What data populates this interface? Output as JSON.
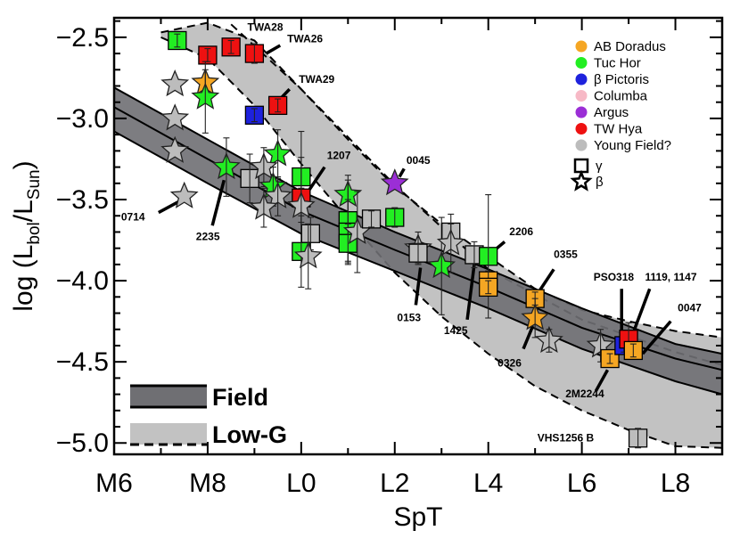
{
  "chart_data": {
    "type": "scatter",
    "xlabel": "SpT",
    "ylabel_main": "log (L",
    "ylabel_sub1": "bol",
    "ylabel_mid": "/L",
    "ylabel_sub2": "Sun",
    "ylabel_end": ")",
    "xlim": [
      6,
      19
    ],
    "ylim": [
      -5.07,
      -2.38
    ],
    "x_ticks": [
      {
        "value": 6,
        "label": "M6"
      },
      {
        "value": 8,
        "label": "M8"
      },
      {
        "value": 10,
        "label": "L0"
      },
      {
        "value": 12,
        "label": "L2"
      },
      {
        "value": 14,
        "label": "L4"
      },
      {
        "value": 16,
        "label": "L6"
      },
      {
        "value": 18,
        "label": "L8"
      }
    ],
    "y_ticks": [
      {
        "value": -2.5,
        "label": "−2.5"
      },
      {
        "value": -3.0,
        "label": "−3.0"
      },
      {
        "value": -3.5,
        "label": "−3.5"
      },
      {
        "value": -4.0,
        "label": "−4.0"
      },
      {
        "value": -4.5,
        "label": "−4.5"
      },
      {
        "value": -5.0,
        "label": "−5.0"
      }
    ],
    "colors": {
      "ABDor": "#f5a623",
      "TucHor": "#22ee22",
      "bPic": "#1e22dd",
      "Columba": "#f7b9c6",
      "Argus": "#9b2ed6",
      "TWHya": "#ee1111",
      "Field": "#bcbcbc",
      "field_band": "#6f6f73",
      "lowg_band": "#c2c2c2"
    },
    "legend": [
      {
        "label": "AB Doradus",
        "color": "#f5a623"
      },
      {
        "label": "Tuc Hor",
        "color": "#22ee22"
      },
      {
        "label": "β Pictoris",
        "color": "#1e22dd"
      },
      {
        "label": "Columba",
        "color": "#f7b9c6"
      },
      {
        "label": "Argus",
        "color": "#9b2ed6"
      },
      {
        "label": "TW Hya",
        "color": "#ee1111"
      },
      {
        "label": "Young Field?",
        "color": "#bcbcbc"
      }
    ],
    "marker_legend": [
      {
        "symbol": "square",
        "label": "γ"
      },
      {
        "symbol": "star",
        "label": "β"
      }
    ],
    "band_legend": [
      {
        "label": "Field",
        "style": "solid"
      },
      {
        "label": "Low-G",
        "style": "dashed"
      }
    ],
    "bands": {
      "field": {
        "upper": [
          [
            6,
            -2.81
          ],
          [
            8,
            -3.13
          ],
          [
            10,
            -3.45
          ],
          [
            12,
            -3.7
          ],
          [
            14,
            -3.93
          ],
          [
            16,
            -4.17
          ],
          [
            18,
            -4.39
          ],
          [
            19,
            -4.45
          ]
        ],
        "center": [
          [
            6,
            -2.93
          ],
          [
            8,
            -3.25
          ],
          [
            10,
            -3.57
          ],
          [
            12,
            -3.81
          ],
          [
            14,
            -4.04
          ],
          [
            16,
            -4.29
          ],
          [
            18,
            -4.48
          ],
          [
            19,
            -4.55
          ]
        ],
        "lower": [
          [
            6,
            -3.08
          ],
          [
            8,
            -3.4
          ],
          [
            10,
            -3.71
          ],
          [
            12,
            -3.94
          ],
          [
            14,
            -4.17
          ],
          [
            16,
            -4.42
          ],
          [
            18,
            -4.62
          ],
          [
            19,
            -4.7
          ]
        ]
      },
      "lowg": {
        "upper": [
          [
            7,
            -2.47
          ],
          [
            8,
            -2.41
          ],
          [
            9,
            -2.52
          ],
          [
            10,
            -2.82
          ],
          [
            11,
            -3.13
          ],
          [
            12,
            -3.42
          ],
          [
            13,
            -3.65
          ],
          [
            14,
            -3.85
          ],
          [
            15,
            -4.05
          ],
          [
            16,
            -4.18
          ],
          [
            17,
            -4.25
          ],
          [
            18,
            -4.31
          ],
          [
            19,
            -4.35
          ]
        ],
        "center": [
          [
            8.5,
            -2.42
          ],
          [
            10,
            -2.82
          ],
          [
            12,
            -3.41
          ],
          [
            14,
            -3.93
          ],
          [
            16,
            -4.24
          ],
          [
            18,
            -4.44
          ],
          [
            19,
            -4.52
          ]
        ],
        "lower": [
          [
            7,
            -2.5
          ],
          [
            8,
            -2.63
          ],
          [
            9,
            -2.92
          ],
          [
            10,
            -3.28
          ],
          [
            11,
            -3.62
          ],
          [
            12,
            -3.95
          ],
          [
            13,
            -4.22
          ],
          [
            14,
            -4.45
          ],
          [
            15,
            -4.65
          ],
          [
            16,
            -4.8
          ],
          [
            17,
            -4.92
          ],
          [
            18,
            -5.02
          ],
          [
            19,
            -5.03
          ]
        ]
      }
    },
    "points": [
      {
        "x": 7.35,
        "y": -2.52,
        "g": "TucHor",
        "m": "square",
        "err": 0.04
      },
      {
        "x": 8.0,
        "y": -2.61,
        "g": "TWHya",
        "m": "square",
        "err": 0.04
      },
      {
        "x": 8.5,
        "y": -2.56,
        "g": "TWHya",
        "m": "square",
        "err": 0.04
      },
      {
        "x": 9.0,
        "y": -2.6,
        "g": "TWHya",
        "m": "square",
        "err": 0.06
      },
      {
        "x": 7.3,
        "y": -2.79,
        "g": "Field",
        "m": "star",
        "err": 0
      },
      {
        "x": 7.95,
        "y": -2.78,
        "g": "ABDor",
        "m": "star",
        "err": 0.08
      },
      {
        "x": 7.95,
        "y": -2.87,
        "g": "TucHor",
        "m": "star",
        "err": 0.22
      },
      {
        "x": 9.0,
        "y": -2.98,
        "g": "bPic",
        "m": "square",
        "err": 0.04
      },
      {
        "x": 9.5,
        "y": -2.92,
        "g": "TWHya",
        "m": "square",
        "err": 0.04
      },
      {
        "x": 7.3,
        "y": -3.0,
        "g": "Field",
        "m": "star",
        "err": 0
      },
      {
        "x": 7.3,
        "y": -3.2,
        "g": "Field",
        "m": "star",
        "err": 0
      },
      {
        "x": 9.5,
        "y": -3.22,
        "g": "TucHor",
        "m": "star",
        "err": 0.15
      },
      {
        "x": 8.4,
        "y": -3.3,
        "g": "TucHor",
        "m": "star",
        "err": 0.18
      },
      {
        "x": 8.9,
        "y": -3.37,
        "g": "Field",
        "m": "square",
        "err": 0.15
      },
      {
        "x": 9.2,
        "y": -3.3,
        "g": "Field",
        "m": "star",
        "err": 0.12
      },
      {
        "x": 9.4,
        "y": -3.42,
        "g": "TucHor",
        "m": "star",
        "err": 0.12
      },
      {
        "x": 9.5,
        "y": -3.48,
        "g": "Field",
        "m": "star",
        "err": 0.12
      },
      {
        "x": 9.2,
        "y": -3.55,
        "g": "Field",
        "m": "star",
        "err": 0.12
      },
      {
        "x": 7.5,
        "y": -3.48,
        "g": "Field",
        "m": "star",
        "err": 0
      },
      {
        "x": 10.0,
        "y": -3.36,
        "g": "TucHor",
        "m": "square",
        "err": 0.28
      },
      {
        "x": 10.0,
        "y": -3.49,
        "g": "TWHya",
        "m": "square",
        "err": 0.06
      },
      {
        "x": 10.0,
        "y": -3.54,
        "g": "Field",
        "m": "star",
        "err": 0.3
      },
      {
        "x": 10.2,
        "y": -3.71,
        "g": "Field",
        "m": "square",
        "err": 0.1
      },
      {
        "x": 10.0,
        "y": -3.82,
        "g": "TucHor",
        "m": "square",
        "err": 0.22
      },
      {
        "x": 10.15,
        "y": -3.85,
        "g": "Field",
        "m": "star",
        "err": 0.2
      },
      {
        "x": 11.0,
        "y": -3.47,
        "g": "TucHor",
        "m": "star",
        "err": 0.12
      },
      {
        "x": 11.0,
        "y": -3.63,
        "g": "TucHor",
        "m": "square",
        "err": 0.25
      },
      {
        "x": 11.0,
        "y": -3.7,
        "g": "TucHor",
        "m": "square",
        "err": 0.2
      },
      {
        "x": 11.0,
        "y": -3.77,
        "g": "TucHor",
        "m": "square",
        "err": 0.12
      },
      {
        "x": 11.2,
        "y": -3.7,
        "g": "Field",
        "m": "star",
        "err": 0.25
      },
      {
        "x": 11.5,
        "y": -3.62,
        "g": "Field",
        "m": "square",
        "err": 0.05
      },
      {
        "x": 12.0,
        "y": -3.4,
        "g": "Argus",
        "m": "star",
        "err": 0
      },
      {
        "x": 12.0,
        "y": -3.61,
        "g": "TucHor",
        "m": "square",
        "err": 0.06
      },
      {
        "x": 12.5,
        "y": -3.8,
        "g": "Field",
        "m": "star",
        "err": 0.1
      },
      {
        "x": 12.5,
        "y": -3.83,
        "g": "Field",
        "m": "square",
        "err": 0.06
      },
      {
        "x": 13.0,
        "y": -3.91,
        "g": "TucHor",
        "m": "star",
        "err": 0.3
      },
      {
        "x": 13.2,
        "y": -3.7,
        "g": "Field",
        "m": "square",
        "err": 0.05
      },
      {
        "x": 13.2,
        "y": -3.77,
        "g": "Field",
        "m": "star",
        "err": 0.18
      },
      {
        "x": 13.7,
        "y": -3.84,
        "g": "Field",
        "m": "square",
        "err": 0.08
      },
      {
        "x": 14.0,
        "y": -3.85,
        "g": "TucHor",
        "m": "square",
        "err": 0.38
      },
      {
        "x": 14.0,
        "y": -4.0,
        "g": "ABDor",
        "m": "square",
        "err": 0.06
      },
      {
        "x": 14.0,
        "y": -4.04,
        "g": "ABDor",
        "m": "square",
        "err": 0.04
      },
      {
        "x": 15.0,
        "y": -4.11,
        "g": "ABDor",
        "m": "square",
        "err": 0.04
      },
      {
        "x": 15.0,
        "y": -4.23,
        "g": "ABDor",
        "m": "star",
        "err": 0.12
      },
      {
        "x": 15.3,
        "y": -4.37,
        "g": "Field",
        "m": "star",
        "err": 0.07
      },
      {
        "x": 16.4,
        "y": -4.4,
        "g": "Field",
        "m": "star",
        "err": 0.1
      },
      {
        "x": 16.6,
        "y": -4.48,
        "g": "ABDor",
        "m": "square",
        "err": 0.03
      },
      {
        "x": 16.9,
        "y": -4.4,
        "g": "bPic",
        "m": "square",
        "err": 0.04
      },
      {
        "x": 17.0,
        "y": -4.36,
        "g": "TWHya",
        "m": "square",
        "err": 0.1
      },
      {
        "x": 17.1,
        "y": -4.43,
        "g": "ABDor",
        "m": "square",
        "err": 0.04
      },
      {
        "x": 17.2,
        "y": -4.97,
        "g": "Field",
        "m": "square",
        "err": 0.06
      }
    ],
    "annotations": [
      {
        "text": "TWA28",
        "x": 8.85,
        "y": -2.46,
        "lx1": 0,
        "ly1": 0,
        "lx2": 0,
        "ly2": 0
      },
      {
        "text": "TWA26",
        "x": 9.7,
        "y": -2.53,
        "lx1": 9.55,
        "ly1": -2.55,
        "lx2": 9.25,
        "ly2": -2.6
      },
      {
        "text": "TWA29",
        "x": 9.95,
        "y": -2.78,
        "lx1": 9.75,
        "ly1": -2.82,
        "lx2": 9.55,
        "ly2": -2.88
      },
      {
        "text": "1207",
        "x": 10.55,
        "y": -3.25,
        "lx1": 10.5,
        "ly1": -3.3,
        "lx2": 10.15,
        "ly2": -3.45
      },
      {
        "text": "0045",
        "x": 12.25,
        "y": -3.28,
        "lx1": 12.2,
        "ly1": -3.31,
        "lx2": 12.1,
        "ly2": -3.36
      },
      {
        "text": "0714",
        "x": 6.15,
        "y": -3.63,
        "lx1": 6.95,
        "ly1": -3.58,
        "lx2": 7.4,
        "ly2": -3.51
      },
      {
        "text": "2235",
        "x": 7.75,
        "y": -3.75,
        "lx1": 8.1,
        "ly1": -3.66,
        "lx2": 8.35,
        "ly2": -3.38
      },
      {
        "text": "2206",
        "x": 14.45,
        "y": -3.72,
        "lx1": 14.35,
        "ly1": -3.76,
        "lx2": 14.1,
        "ly2": -3.82
      },
      {
        "text": "0355",
        "x": 15.4,
        "y": -3.86,
        "lx1": 15.4,
        "ly1": -3.93,
        "lx2": 15.1,
        "ly2": -4.06
      },
      {
        "text": "PSO318",
        "x": 16.25,
        "y": -4.0,
        "lx1": 16.85,
        "ly1": -4.05,
        "lx2": 16.85,
        "ly2": -4.35
      },
      {
        "text": "1119, 1147",
        "x": 17.35,
        "y": -4.0,
        "lx1": 17.45,
        "ly1": -4.05,
        "lx2": 17.1,
        "ly2": -4.32
      },
      {
        "text": "0047",
        "x": 18.05,
        "y": -4.19,
        "lx1": 17.9,
        "ly1": -4.25,
        "lx2": 17.3,
        "ly2": -4.45
      },
      {
        "text": "0153",
        "x": 12.05,
        "y": -4.25,
        "lx1": 12.45,
        "ly1": -4.15,
        "lx2": 12.55,
        "ly2": -3.92
      },
      {
        "text": "1425",
        "x": 13.05,
        "y": -4.33,
        "lx1": 13.55,
        "ly1": -4.24,
        "lx2": 13.7,
        "ly2": -3.9
      },
      {
        "text": "0326",
        "x": 14.2,
        "y": -4.53,
        "lx1": 14.75,
        "ly1": -4.42,
        "lx2": 14.95,
        "ly2": -4.28
      },
      {
        "text": "2M2244",
        "x": 15.65,
        "y": -4.72,
        "lx1": 16.3,
        "ly1": -4.68,
        "lx2": 16.55,
        "ly2": -4.55
      },
      {
        "text": "VHS1256 B",
        "x": 15.05,
        "y": -4.99,
        "lx1": 0,
        "ly1": 0,
        "lx2": 0,
        "ly2": 0
      }
    ]
  }
}
